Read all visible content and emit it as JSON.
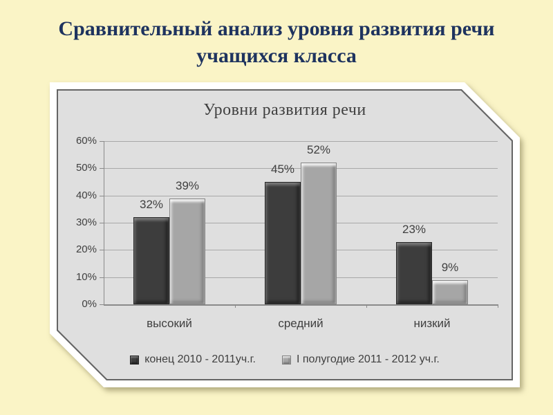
{
  "slide": {
    "title": "Сравнительный анализ уровня развития речи учащихся класса",
    "title_color": "#1E335F",
    "background_color": "#FAF4C6"
  },
  "chart_data": {
    "type": "bar",
    "title": "Уровни развития речи",
    "categories": [
      "высокий",
      "средний",
      "низкий"
    ],
    "series": [
      {
        "name": "конец 2010 - 2011уч.г.",
        "values": [
          32,
          45,
          23
        ],
        "color": "#3D3D3D"
      },
      {
        "name": "I полугодие 2011 - 2012 уч.г.",
        "values": [
          39,
          52,
          9
        ],
        "color": "#A6A6A6"
      }
    ],
    "value_suffix": "%",
    "ylim": [
      0,
      60
    ],
    "yticks": [
      0,
      10,
      20,
      30,
      40,
      50,
      60
    ],
    "grid": true,
    "grid_color": "#A8A8A8",
    "axis_color": "#8A8A8A",
    "plot_bg": "#DFDFDF",
    "legend_position": "bottom"
  }
}
